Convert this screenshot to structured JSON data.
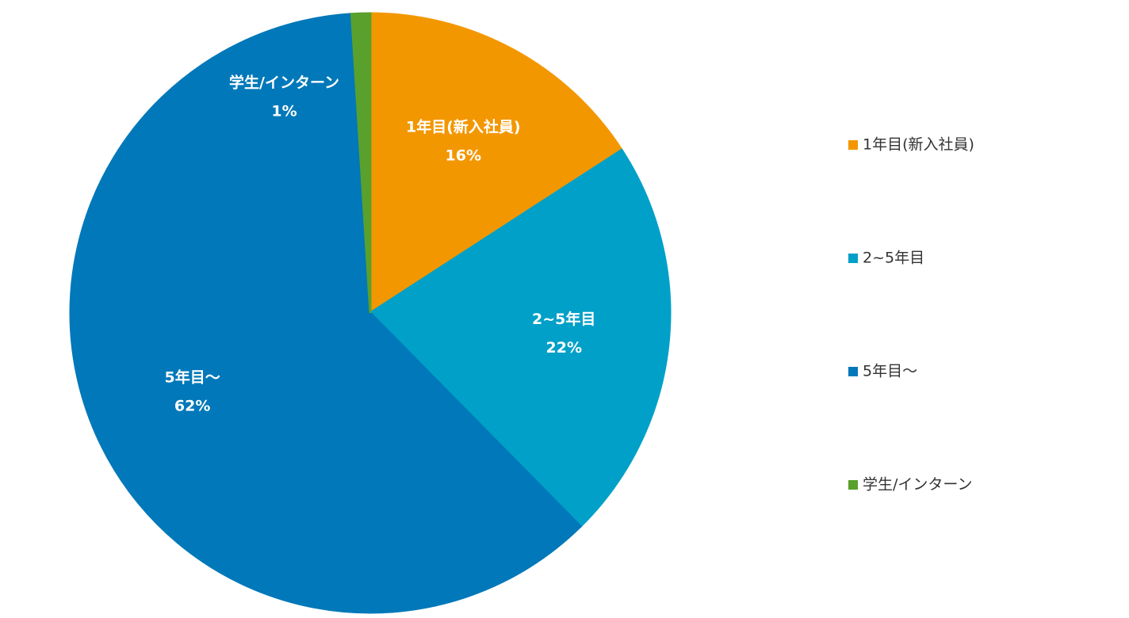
{
  "chart_data": {
    "type": "pie",
    "categories": [
      "1年目(新入社員)",
      "2~5年目",
      "5年目〜",
      "学生/インターン"
    ],
    "values": [
      16,
      22,
      62,
      1
    ],
    "value_labels": [
      "16%",
      "22%",
      "62%",
      "1%"
    ],
    "colors": [
      "#f39700",
      "#00a0c8",
      "#0078b9",
      "#5aa02c"
    ]
  }
}
